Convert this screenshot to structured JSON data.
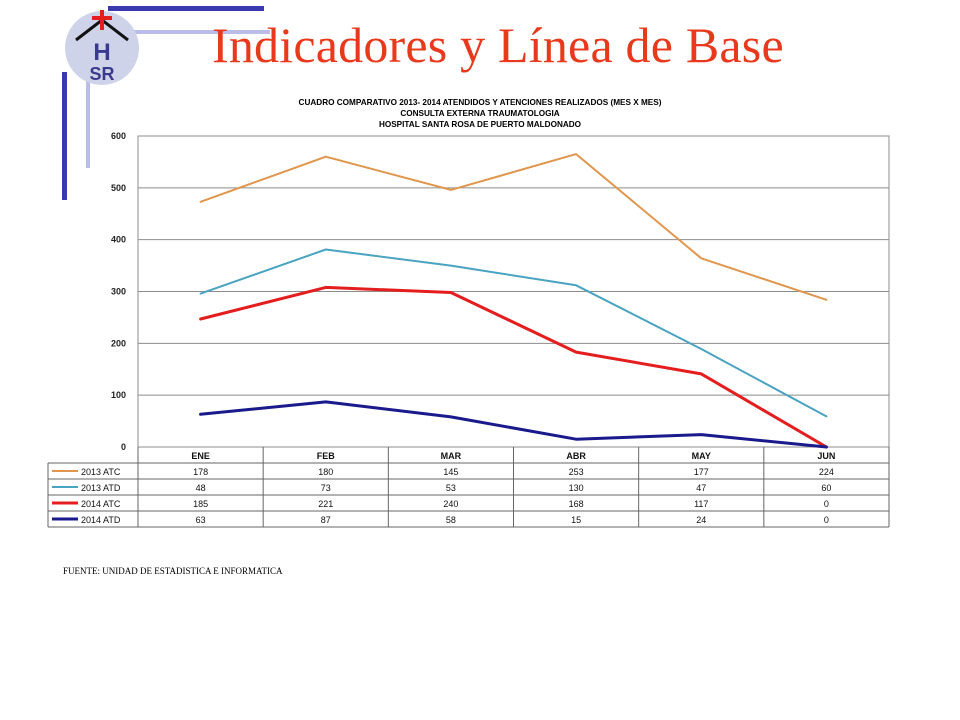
{
  "slide": {
    "title": "Indicadores y Línea de Base",
    "source": "FUENTE: UNIDAD DE ESTADISTICA E INFORMATICA",
    "logo_text": "HSR",
    "accent_color": "#e8391d",
    "bar_color": "#3a3ab0",
    "bar_light_color": "#b9bde8"
  },
  "chart_data": {
    "type": "line",
    "title_lines": [
      "CUADRO COMPARATIVO 2013- 2014   ATENDIDOS Y ATENCIONES  REALIZADOS (MES X MES)",
      "CONSULTA EXTERNA TRAUMATOLOGIA",
      "HOSPITAL  SANTA ROSA DE PUERTO MALDONADO"
    ],
    "categories": [
      "ENE",
      "FEB",
      "MAR",
      "ABR",
      "MAY",
      "JUN"
    ],
    "ylim": [
      0,
      600
    ],
    "yticks": [
      0,
      100,
      200,
      300,
      400,
      500,
      600
    ],
    "grid": true,
    "legend": "table-below",
    "series": [
      {
        "name": "2013 ATC",
        "color": "#e0964d",
        "width": 2,
        "values": [
          473,
          560,
          496,
          565,
          364,
          284
        ],
        "table_values": [
          "178",
          "180",
          "145",
          "253",
          "177",
          "224"
        ]
      },
      {
        "name": "2013 ATD",
        "color": "#4aa3c0",
        "width": 2,
        "values": [
          296,
          381,
          350,
          312,
          189,
          59
        ],
        "table_values": [
          "48",
          "73",
          "53",
          "130",
          "47",
          "60"
        ]
      },
      {
        "name": "2014 ATC",
        "color": "#e41e1e",
        "width": 3,
        "values": [
          247,
          308,
          298,
          183,
          141,
          0
        ],
        "table_values": [
          "185",
          "221",
          "240",
          "168",
          "117",
          "0"
        ]
      },
      {
        "name": "2014 ATD",
        "color": "#1a1a8c",
        "width": 3,
        "values": [
          63,
          87,
          58,
          15,
          24,
          0
        ],
        "table_values": [
          "63",
          "87",
          "58",
          "15",
          "24",
          "0"
        ]
      }
    ]
  }
}
